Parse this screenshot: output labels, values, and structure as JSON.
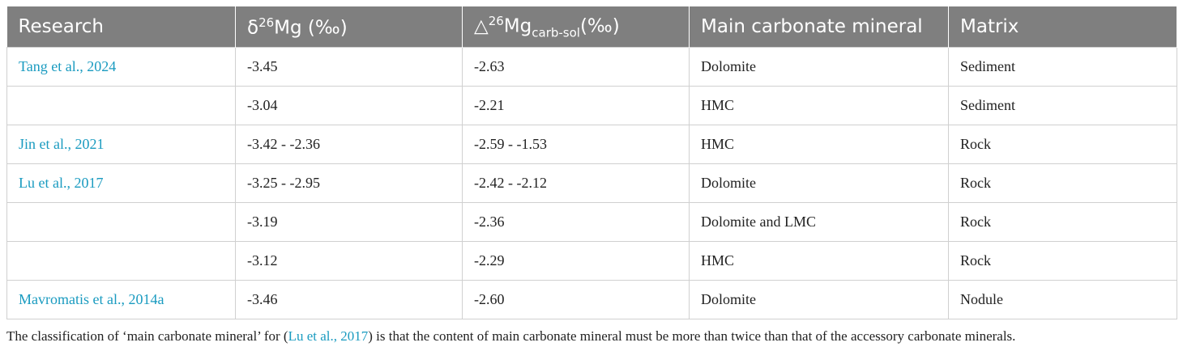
{
  "table": {
    "header": [
      {
        "text": "Research"
      },
      {
        "prefix": "δ",
        "sup": "26",
        "rest": "Mg (‰)"
      },
      {
        "prefix": "△",
        "sup": "26",
        "mid": "Mg",
        "sub": "carb-sol",
        "rest": "(‰)"
      },
      {
        "text": "Main carbonate mineral"
      },
      {
        "text": "Matrix"
      }
    ],
    "rows": [
      [
        "Tang et al., 2024",
        "-3.45",
        "-2.63",
        "Dolomite",
        "Sediment"
      ],
      [
        null,
        "-3.04",
        "-2.21",
        "HMC",
        "Sediment"
      ],
      [
        "Jin et al., 2021",
        "-3.42 - -2.36",
        "-2.59 - -1.53",
        "HMC",
        "Rock"
      ],
      [
        "Lu et al., 2017",
        "-3.25 - -2.95",
        "-2.42 - -2.12",
        "Dolomite",
        "Rock"
      ],
      [
        null,
        "-3.19",
        "-2.36",
        "Dolomite and LMC",
        "Rock"
      ],
      [
        null,
        "-3.12",
        "-2.29",
        "HMC",
        "Rock"
      ],
      [
        "Mavromatis et al., 2014a",
        "-3.46",
        "-2.60",
        "Dolomite",
        "Nodule"
      ]
    ]
  },
  "footnote": {
    "before": "The classification of ‘main carbonate mineral’ for (",
    "link": "Lu et al., 2017",
    "after": ") is that the content of main carbonate mineral must be more than twice than that of the accessory carbonate minerals."
  }
}
